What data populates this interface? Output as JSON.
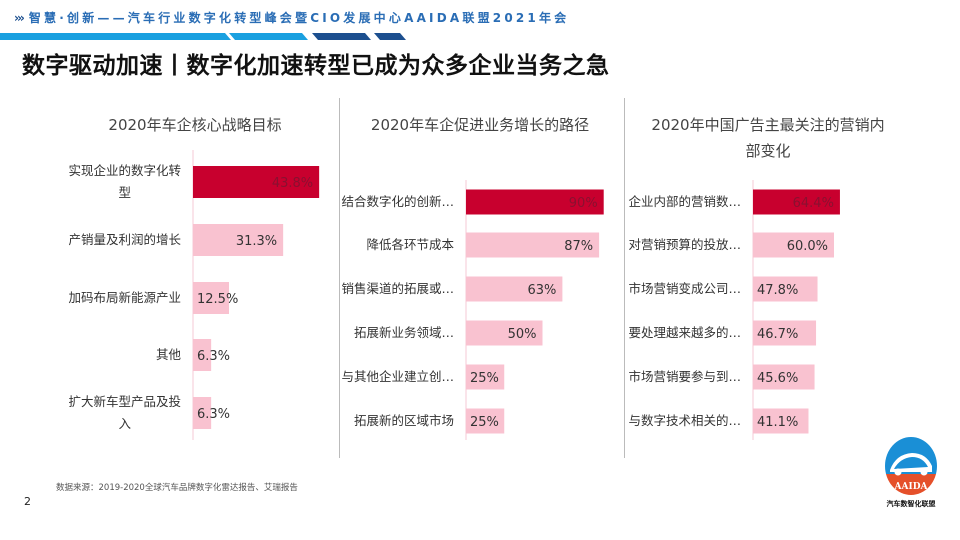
{
  "header": {
    "chevrons": "›››",
    "banner": "智慧·创新——汽车行业数字化转型峰会暨CIO发展中心AAIDA联盟2021年会"
  },
  "title": "数字驱动加速丨数字化加速转型已成为众多企业当务之急",
  "colors": {
    "highlight": "#c8002e",
    "bar": "#f9c2d0",
    "banner_blue": "#1aa0e0",
    "banner_dark": "#1c4f8f"
  },
  "chart_data": [
    {
      "type": "bar",
      "orientation": "horizontal",
      "title": "2020年车企核心战略目标",
      "categories": [
        "实现企业的数字化转型",
        "产销量及利润的增长",
        "加码布局新能源产业",
        "其他",
        "扩大新车型产品及投入"
      ],
      "values": [
        43.8,
        31.3,
        12.5,
        6.3,
        6.3
      ],
      "labels": [
        "43.8%",
        "31.3%",
        "12.5%",
        "6.3%",
        "6.3%"
      ],
      "unit": "%",
      "highlight_index": 0
    },
    {
      "type": "bar",
      "orientation": "horizontal",
      "title": "2020年车企促进业务增长的路径",
      "categories": [
        "结合数字化的创新…",
        "降低各环节成本",
        "销售渠道的拓展或…",
        "拓展新业务领域…",
        "与其他企业建立创…",
        "拓展新的区域市场"
      ],
      "values": [
        90,
        87,
        63,
        50,
        25,
        25
      ],
      "labels": [
        "90%",
        "87%",
        "63%",
        "50%",
        "25%",
        "25%"
      ],
      "unit": "%",
      "highlight_index": 0
    },
    {
      "type": "bar",
      "orientation": "horizontal",
      "title": "2020年中国广告主最关注的营销内部变化",
      "categories": [
        "企业内部的营销数…",
        "对营销预算的投放…",
        "市场营销变成公司…",
        "要处理越来越多的…",
        "市场营销要参与到…",
        "与数字技术相关的…"
      ],
      "values": [
        64.4,
        60.0,
        47.8,
        46.7,
        45.6,
        41.1
      ],
      "labels": [
        "64.4%",
        "60.0%",
        "47.8%",
        "46.7%",
        "45.6%",
        "41.1%"
      ],
      "unit": "%",
      "highlight_index": 0
    }
  ],
  "footer": {
    "source": "数据来源：2019-2020全球汽车品牌数字化雷达报告、艾瑞报告",
    "page": "2"
  },
  "logo": {
    "text": "AAIDA",
    "caption": "汽车数智化联盟"
  }
}
